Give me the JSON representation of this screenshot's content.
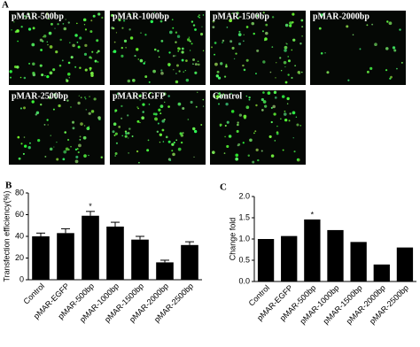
{
  "panel_a": {
    "label": "A",
    "images": [
      "pMAR-500bp",
      "pMAR-1000bp",
      "pMAR-1500bp",
      "pMAR-2000bp",
      "pMAR-2500bp",
      "pMAR-EGFP",
      "Control"
    ]
  },
  "chart_data": [
    {
      "type": "bar",
      "panel": "B",
      "y_label": "Transfection efficiency(%)",
      "categories": [
        "Control",
        "pMAR-EGFP",
        "pMAR-500bp",
        "pMAR-1000bp",
        "pMAR-1500bp",
        "pMAR-2000bp",
        "pMAR-2500bp"
      ],
      "values": [
        40,
        43,
        59,
        49,
        37,
        16,
        32
      ],
      "errors": [
        3,
        4,
        4,
        4,
        3,
        2,
        3
      ],
      "color": "#000000",
      "ylim": [
        0,
        80
      ],
      "yticks": [
        0,
        20,
        40,
        60,
        80
      ],
      "annotations": [
        {
          "text": "*",
          "category": "pMAR-500bp"
        }
      ]
    },
    {
      "type": "bar",
      "panel": "C",
      "y_label": "Change fold",
      "categories": [
        "Control",
        "pMAR-EGFP",
        "pMAR-500bp",
        "pMAR-1000bp",
        "pMAR-1500bp",
        "pMAR-2000bp",
        "pMAR-2500bp"
      ],
      "values": [
        1.0,
        1.07,
        1.46,
        1.21,
        0.93,
        0.4,
        0.8
      ],
      "color": "#000000",
      "ylim": [
        0,
        2
      ],
      "yticks": [
        {
          "value": 0,
          "label": "0.0"
        },
        {
          "value": 0.5,
          "label": "0.5"
        },
        {
          "value": 1,
          "label": "1.0"
        },
        {
          "value": 1.5,
          "label": "1.5"
        },
        {
          "value": 2,
          "label": "2.0"
        }
      ],
      "annotations": [
        {
          "text": "*",
          "category": "pMAR-500bp"
        }
      ]
    }
  ]
}
